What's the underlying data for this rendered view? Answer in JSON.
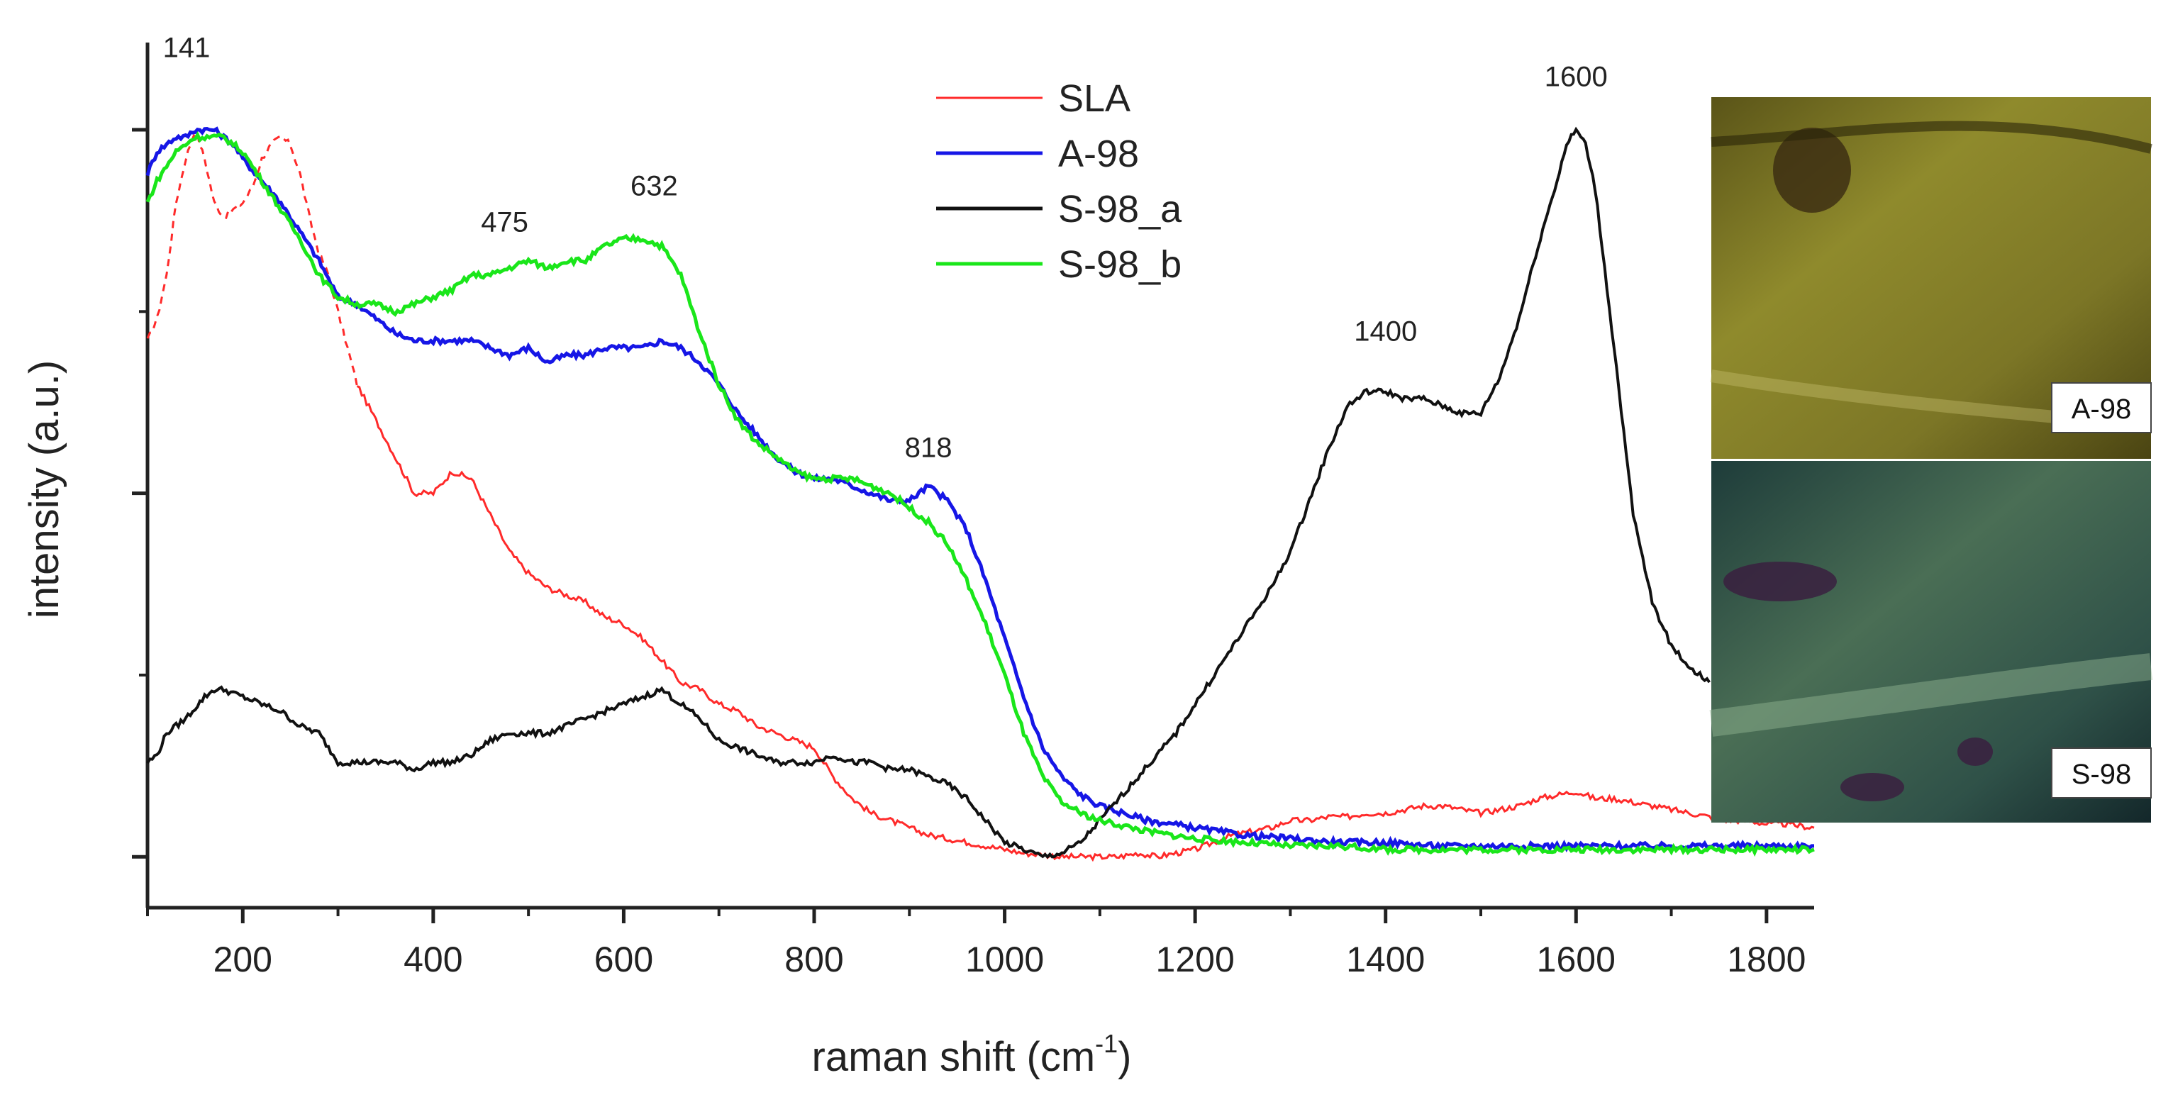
{
  "chart_data": {
    "type": "line",
    "title": "",
    "xlabel": "raman shift (cm",
    "xlabel_superscript": "-1",
    "xlabel_suffix": ")",
    "ylabel": "intensity (a.u.)",
    "xlim": [
      100,
      1850
    ],
    "ylim": [
      -0.07,
      1.12
    ],
    "x_ticks": [
      200,
      400,
      600,
      800,
      1000,
      1200,
      1400,
      1600,
      1800
    ],
    "y_ticks_unlabeled": [
      0,
      0.5,
      1.0
    ],
    "grid": false,
    "legend_position": "top-center",
    "series": [
      {
        "name": "SLA",
        "color": "#ff2a2a",
        "dashed_until_x": 320,
        "x": [
          100,
          110,
          120,
          130,
          140,
          150,
          160,
          170,
          180,
          190,
          200,
          210,
          220,
          230,
          240,
          250,
          260,
          270,
          280,
          290,
          300,
          320,
          340,
          360,
          380,
          400,
          420,
          440,
          460,
          480,
          500,
          520,
          540,
          560,
          580,
          600,
          620,
          640,
          660,
          680,
          700,
          720,
          740,
          760,
          780,
          800,
          820,
          840,
          860,
          880,
          900,
          920,
          940,
          960,
          980,
          1000,
          1020,
          1040,
          1060,
          1080,
          1100,
          1120,
          1140,
          1160,
          1180,
          1200,
          1220,
          1240,
          1260,
          1280,
          1300,
          1320,
          1340,
          1360,
          1380,
          1400,
          1420,
          1440,
          1460,
          1480,
          1500,
          1520,
          1540,
          1560,
          1580,
          1600,
          1620,
          1640,
          1660,
          1680,
          1700,
          1720,
          1740,
          1760,
          1780,
          1800,
          1820,
          1850
        ],
        "y": [
          0.71,
          0.74,
          0.8,
          0.9,
          0.96,
          1.0,
          0.96,
          0.9,
          0.88,
          0.89,
          0.9,
          0.92,
          0.96,
          0.98,
          0.99,
          0.98,
          0.94,
          0.88,
          0.83,
          0.8,
          0.75,
          0.65,
          0.6,
          0.55,
          0.5,
          0.5,
          0.53,
          0.52,
          0.47,
          0.42,
          0.39,
          0.37,
          0.36,
          0.35,
          0.33,
          0.32,
          0.3,
          0.27,
          0.24,
          0.23,
          0.21,
          0.2,
          0.18,
          0.17,
          0.16,
          0.15,
          0.11,
          0.08,
          0.06,
          0.05,
          0.04,
          0.03,
          0.025,
          0.02,
          0.015,
          0.01,
          0.005,
          0.003,
          0.0,
          0.0,
          0.0,
          0.0,
          0.005,
          0.0,
          0.005,
          0.01,
          0.02,
          0.03,
          0.035,
          0.04,
          0.05,
          0.05,
          0.055,
          0.055,
          0.06,
          0.06,
          0.065,
          0.07,
          0.07,
          0.065,
          0.06,
          0.065,
          0.07,
          0.08,
          0.085,
          0.09,
          0.08,
          0.08,
          0.075,
          0.07,
          0.065,
          0.06,
          0.055,
          0.05,
          0.05,
          0.045,
          0.045,
          0.04
        ]
      },
      {
        "name": "A-98",
        "color": "#1616e6",
        "x": [
          100,
          110,
          120,
          130,
          140,
          150,
          160,
          170,
          180,
          190,
          200,
          220,
          240,
          260,
          280,
          300,
          320,
          340,
          360,
          380,
          400,
          420,
          440,
          460,
          480,
          500,
          520,
          540,
          560,
          580,
          600,
          620,
          640,
          660,
          680,
          700,
          720,
          740,
          760,
          780,
          800,
          820,
          840,
          860,
          880,
          900,
          920,
          940,
          960,
          980,
          1000,
          1020,
          1040,
          1060,
          1080,
          1100,
          1150,
          1200,
          1250,
          1300,
          1350,
          1400,
          1450,
          1500,
          1550,
          1600,
          1650,
          1700,
          1750,
          1800,
          1850
        ],
        "y": [
          0.94,
          0.97,
          0.98,
          0.99,
          0.99,
          1.0,
          1.0,
          1.0,
          0.99,
          0.98,
          0.96,
          0.93,
          0.9,
          0.86,
          0.82,
          0.77,
          0.76,
          0.74,
          0.72,
          0.71,
          0.71,
          0.71,
          0.71,
          0.7,
          0.69,
          0.7,
          0.68,
          0.69,
          0.69,
          0.7,
          0.7,
          0.7,
          0.71,
          0.7,
          0.68,
          0.65,
          0.61,
          0.58,
          0.55,
          0.53,
          0.52,
          0.52,
          0.51,
          0.5,
          0.49,
          0.49,
          0.51,
          0.49,
          0.45,
          0.38,
          0.3,
          0.22,
          0.15,
          0.11,
          0.085,
          0.07,
          0.05,
          0.04,
          0.03,
          0.025,
          0.02,
          0.02,
          0.015,
          0.015,
          0.015,
          0.015,
          0.015,
          0.015,
          0.015,
          0.015,
          0.015
        ]
      },
      {
        "name": "S-98_a",
        "color": "#111111",
        "x": [
          100,
          110,
          120,
          140,
          160,
          170,
          180,
          200,
          220,
          240,
          260,
          280,
          300,
          320,
          340,
          360,
          380,
          400,
          420,
          440,
          460,
          480,
          500,
          520,
          540,
          560,
          580,
          600,
          620,
          640,
          660,
          680,
          700,
          720,
          740,
          760,
          780,
          800,
          820,
          840,
          860,
          880,
          900,
          920,
          940,
          960,
          980,
          1000,
          1020,
          1040,
          1060,
          1080,
          1100,
          1120,
          1140,
          1160,
          1180,
          1200,
          1220,
          1240,
          1260,
          1280,
          1300,
          1320,
          1340,
          1360,
          1380,
          1400,
          1420,
          1440,
          1460,
          1480,
          1500,
          1520,
          1540,
          1560,
          1580,
          1590,
          1600,
          1610,
          1620,
          1640,
          1660,
          1680,
          1700,
          1720,
          1740
        ],
        "y": [
          0.13,
          0.14,
          0.17,
          0.19,
          0.22,
          0.23,
          0.23,
          0.22,
          0.21,
          0.2,
          0.18,
          0.17,
          0.13,
          0.13,
          0.13,
          0.13,
          0.12,
          0.13,
          0.13,
          0.14,
          0.16,
          0.17,
          0.17,
          0.17,
          0.18,
          0.19,
          0.2,
          0.21,
          0.22,
          0.23,
          0.21,
          0.19,
          0.16,
          0.15,
          0.14,
          0.13,
          0.13,
          0.13,
          0.14,
          0.13,
          0.13,
          0.12,
          0.12,
          0.11,
          0.1,
          0.08,
          0.05,
          0.02,
          0.01,
          0.0,
          0.005,
          0.02,
          0.05,
          0.08,
          0.11,
          0.14,
          0.17,
          0.21,
          0.25,
          0.29,
          0.33,
          0.37,
          0.42,
          0.49,
          0.56,
          0.62,
          0.64,
          0.64,
          0.63,
          0.63,
          0.62,
          0.61,
          0.61,
          0.66,
          0.74,
          0.84,
          0.93,
          0.98,
          1.0,
          0.98,
          0.92,
          0.7,
          0.47,
          0.35,
          0.29,
          0.26,
          0.24
        ]
      },
      {
        "name": "S-98_b",
        "color": "#1ae61a",
        "x": [
          100,
          110,
          120,
          130,
          140,
          150,
          160,
          170,
          180,
          190,
          200,
          220,
          240,
          260,
          280,
          300,
          320,
          340,
          360,
          380,
          400,
          420,
          440,
          460,
          480,
          500,
          520,
          540,
          560,
          580,
          600,
          620,
          640,
          660,
          680,
          700,
          720,
          740,
          760,
          780,
          800,
          820,
          840,
          860,
          880,
          900,
          920,
          940,
          960,
          980,
          1000,
          1020,
          1040,
          1060,
          1080,
          1100,
          1150,
          1200,
          1250,
          1300,
          1350,
          1400,
          1450,
          1500,
          1550,
          1600,
          1650,
          1700,
          1750,
          1800,
          1850
        ],
        "y": [
          0.9,
          0.93,
          0.95,
          0.97,
          0.98,
          0.99,
          0.99,
          0.99,
          0.99,
          0.98,
          0.97,
          0.93,
          0.89,
          0.85,
          0.8,
          0.77,
          0.76,
          0.76,
          0.75,
          0.76,
          0.77,
          0.78,
          0.8,
          0.8,
          0.81,
          0.82,
          0.81,
          0.82,
          0.82,
          0.84,
          0.85,
          0.85,
          0.84,
          0.8,
          0.72,
          0.65,
          0.6,
          0.57,
          0.55,
          0.53,
          0.52,
          0.52,
          0.52,
          0.51,
          0.5,
          0.48,
          0.46,
          0.43,
          0.38,
          0.32,
          0.25,
          0.17,
          0.11,
          0.075,
          0.06,
          0.05,
          0.035,
          0.025,
          0.02,
          0.015,
          0.015,
          0.01,
          0.01,
          0.01,
          0.01,
          0.01,
          0.01,
          0.01,
          0.01,
          0.01,
          0.01
        ]
      }
    ],
    "annotations": [
      {
        "text": "141",
        "x": 141,
        "y": 1.1
      },
      {
        "text": "475",
        "x": 475,
        "y": 0.86
      },
      {
        "text": "632",
        "x": 632,
        "y": 0.91
      },
      {
        "text": "818",
        "x": 920,
        "y": 0.55
      },
      {
        "text": "1400",
        "x": 1400,
        "y": 0.71
      },
      {
        "text": "1600",
        "x": 1600,
        "y": 1.06
      }
    ]
  },
  "insets": [
    {
      "label": "A-98"
    },
    {
      "label": "S-98"
    }
  ]
}
